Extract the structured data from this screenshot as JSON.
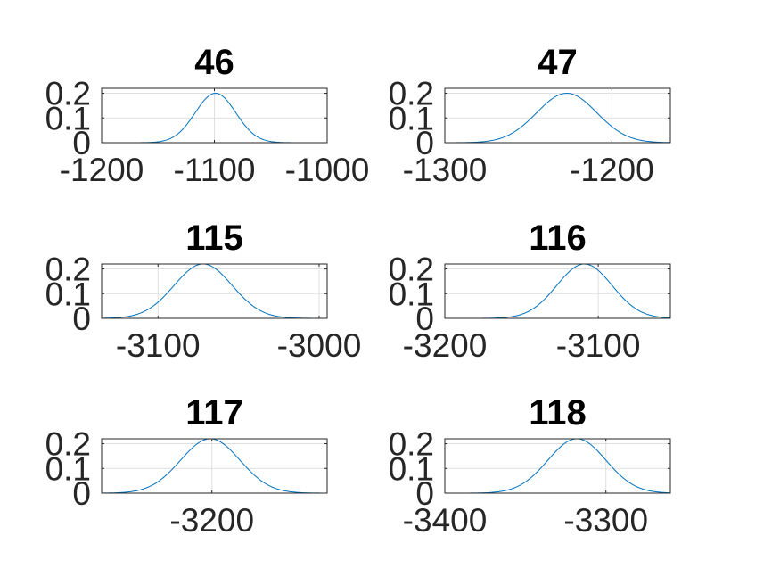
{
  "chart_data": [
    {
      "type": "line",
      "title": "46",
      "xlim": [
        -1200,
        -1000
      ],
      "ylim": [
        0,
        0.22
      ],
      "xticks": [
        -1200,
        -1100,
        -1000
      ],
      "xtick_labels": [
        "-1200",
        "-1100",
        "-1000"
      ],
      "yticks": [
        0,
        0.1,
        0.2
      ],
      "ytick_labels": [
        "0",
        "0.1",
        "0.2"
      ],
      "grid": true,
      "series": [
        {
          "mean": -1099,
          "sd": 18,
          "peak": 0.2
        }
      ]
    },
    {
      "type": "line",
      "title": "47",
      "xlim": [
        -1300,
        -1165
      ],
      "ylim": [
        0,
        0.22
      ],
      "xticks": [
        -1300,
        -1200
      ],
      "xtick_labels": [
        "-1300",
        "-1200"
      ],
      "yticks": [
        0,
        0.1,
        0.2
      ],
      "ytick_labels": [
        "0",
        "0.1",
        "0.2"
      ],
      "grid": true,
      "series": [
        {
          "mean": -1227,
          "sd": 18,
          "peak": 0.2
        }
      ]
    },
    {
      "type": "line",
      "title": "115",
      "xlim": [
        -3135,
        -2995
      ],
      "ylim": [
        0,
        0.22
      ],
      "xticks": [
        -3100,
        -3000
      ],
      "xtick_labels": [
        "-3100",
        "-3000"
      ],
      "yticks": [
        0,
        0.1,
        0.2
      ],
      "ytick_labels": [
        "0",
        "0.1",
        "0.2"
      ],
      "grid": true,
      "series": [
        {
          "mean": -3072,
          "sd": 18,
          "peak": 0.22
        }
      ]
    },
    {
      "type": "line",
      "title": "116",
      "xlim": [
        -3200,
        -3053
      ],
      "ylim": [
        0,
        0.22
      ],
      "xticks": [
        -3200,
        -3100
      ],
      "xtick_labels": [
        "-3200",
        "-3100"
      ],
      "yticks": [
        0,
        0.1,
        0.2
      ],
      "ytick_labels": [
        "0",
        "0.1",
        "0.2"
      ],
      "grid": true,
      "series": [
        {
          "mean": -3109,
          "sd": 18,
          "peak": 0.22
        }
      ]
    },
    {
      "type": "line",
      "title": "117",
      "xlim": [
        -3267,
        -3130
      ],
      "ylim": [
        0,
        0.22
      ],
      "xticks": [
        -3200
      ],
      "xtick_labels": [
        "-3200"
      ],
      "yticks": [
        0,
        0.1,
        0.2
      ],
      "ytick_labels": [
        "0",
        "0.1",
        "0.2"
      ],
      "grid": true,
      "series": [
        {
          "mean": -3201,
          "sd": 18,
          "peak": 0.22
        }
      ]
    },
    {
      "type": "line",
      "title": "118",
      "xlim": [
        -3400,
        -3260
      ],
      "ylim": [
        0,
        0.22
      ],
      "xticks": [
        -3400,
        -3300
      ],
      "xtick_labels": [
        "-3400",
        "-3300"
      ],
      "yticks": [
        0,
        0.1,
        0.2
      ],
      "ytick_labels": [
        "0",
        "0.1",
        "0.2"
      ],
      "grid": true,
      "series": [
        {
          "mean": -3318,
          "sd": 18,
          "peak": 0.22
        }
      ]
    }
  ],
  "colors": {
    "line": "#0072BD",
    "grid": "#dfdfdf",
    "axis": "#262626",
    "background": "#ffffff"
  }
}
